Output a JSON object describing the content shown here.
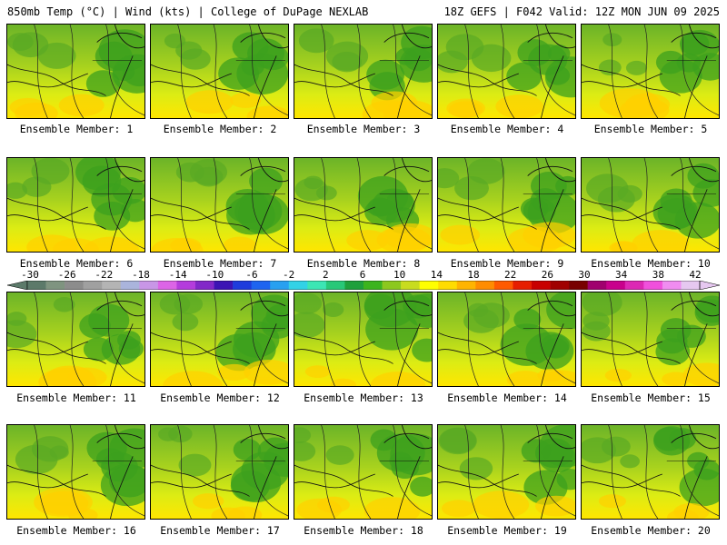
{
  "header": {
    "left": "850mb Temp (°C) | Wind (kts) | College of DuPage NEXLAB",
    "right": "18Z GEFS | F042 Valid: 12Z MON JUN 09 2025"
  },
  "panels": [
    {
      "label": "Ensemble Member: 1"
    },
    {
      "label": "Ensemble Member: 2"
    },
    {
      "label": "Ensemble Member: 3"
    },
    {
      "label": "Ensemble Member: 4"
    },
    {
      "label": "Ensemble Member: 5"
    },
    {
      "label": "Ensemble Member: 6"
    },
    {
      "label": "Ensemble Member: 7"
    },
    {
      "label": "Ensemble Member: 8"
    },
    {
      "label": "Ensemble Member: 9"
    },
    {
      "label": "Ensemble Member: 10"
    },
    {
      "label": "Ensemble Member: 11"
    },
    {
      "label": "Ensemble Member: 12"
    },
    {
      "label": "Ensemble Member: 13"
    },
    {
      "label": "Ensemble Member: 14"
    },
    {
      "label": "Ensemble Member: 15"
    },
    {
      "label": "Ensemble Member: 16"
    },
    {
      "label": "Ensemble Member: 17"
    },
    {
      "label": "Ensemble Member: 18"
    },
    {
      "label": "Ensemble Member: 19"
    },
    {
      "label": "Ensemble Member: 20"
    }
  ],
  "colorbar": {
    "ticks": [
      "-30",
      "-26",
      "-22",
      "-18",
      "-14",
      "-10",
      "-6",
      "-2",
      "2",
      "6",
      "10",
      "14",
      "18",
      "22",
      "26",
      "30",
      "34",
      "38",
      "42"
    ],
    "colors": [
      "#5c7a6a",
      "#7f9480",
      "#8c8c8c",
      "#a0a0a0",
      "#b4b4b4",
      "#aab4dc",
      "#c896e6",
      "#dc64e6",
      "#b43cdc",
      "#8228c8",
      "#3c14b4",
      "#1e3cdc",
      "#1e64f0",
      "#28a0f0",
      "#32d2e6",
      "#3ce6b4",
      "#28c878",
      "#1ea03c",
      "#3cb41e",
      "#8cc81e",
      "#c8dc1e",
      "#ffff00",
      "#ffdc00",
      "#ffb400",
      "#ff8c00",
      "#ff5a00",
      "#e61e00",
      "#c80000",
      "#a00000",
      "#780000",
      "#a0006e",
      "#c8008c",
      "#dc28b4",
      "#f050dc",
      "#f08cf0",
      "#e6c8f0"
    ]
  }
}
